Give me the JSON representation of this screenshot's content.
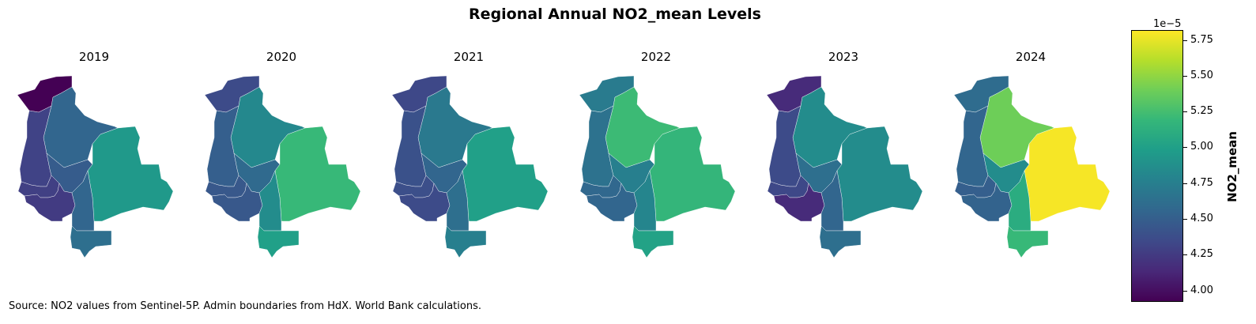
{
  "title": "Regional Annual NO2_mean Levels",
  "source": "Source: NO2 values from Sentinel-5P. Admin boundaries from HdX. World Bank calculations.",
  "colorbar": {
    "label": "NO2_mean",
    "exponent": "1e−5",
    "range": [
      3.92,
      5.82
    ],
    "ticks": [
      "4.00",
      "4.25",
      "4.50",
      "4.75",
      "5.00",
      "5.25",
      "5.50",
      "5.75"
    ],
    "colormap": "viridis"
  },
  "chart_data": {
    "type": "choropleth",
    "title": "Regional Annual NO2_mean Levels",
    "colorbar_label": "NO2_mean",
    "unit_scale": "1e-5",
    "vmin": 3.92,
    "vmax": 5.82,
    "panels": [
      {
        "year": "2019",
        "values": {
          "pando": 3.92,
          "la-paz": 4.3,
          "beni": 4.55,
          "oruro": 4.28,
          "cochabamba": 4.48,
          "santa-cruz": 4.95,
          "potosi": 4.25,
          "chuquisaca": 4.55,
          "tarija": 4.62
        }
      },
      {
        "year": "2020",
        "values": {
          "pando": 4.35,
          "la-paz": 4.5,
          "beni": 4.82,
          "oruro": 4.45,
          "cochabamba": 4.58,
          "santa-cruz": 5.2,
          "potosi": 4.45,
          "chuquisaca": 4.85,
          "tarija": 5.0
        }
      },
      {
        "year": "2021",
        "values": {
          "pando": 4.33,
          "la-paz": 4.4,
          "beni": 4.7,
          "oruro": 4.38,
          "cochabamba": 4.55,
          "santa-cruz": 5.0,
          "potosi": 4.35,
          "chuquisaca": 4.62,
          "tarija": 4.75
        }
      },
      {
        "year": "2022",
        "values": {
          "pando": 4.72,
          "la-paz": 4.65,
          "beni": 5.22,
          "oruro": 4.57,
          "cochabamba": 4.75,
          "santa-cruz": 5.18,
          "potosi": 4.55,
          "chuquisaca": 4.8,
          "tarija": 5.02
        }
      },
      {
        "year": "2023",
        "values": {
          "pando": 4.15,
          "la-paz": 4.35,
          "beni": 4.85,
          "oruro": 4.33,
          "cochabamba": 4.62,
          "santa-cruz": 4.85,
          "potosi": 4.15,
          "chuquisaca": 4.55,
          "tarija": 4.62
        }
      },
      {
        "year": "2024",
        "values": {
          "pando": 4.6,
          "la-paz": 4.55,
          "beni": 5.4,
          "oruro": 4.5,
          "cochabamba": 4.85,
          "santa-cruz": 5.8,
          "potosi": 4.53,
          "chuquisaca": 5.1,
          "tarija": 5.2
        }
      }
    ]
  }
}
